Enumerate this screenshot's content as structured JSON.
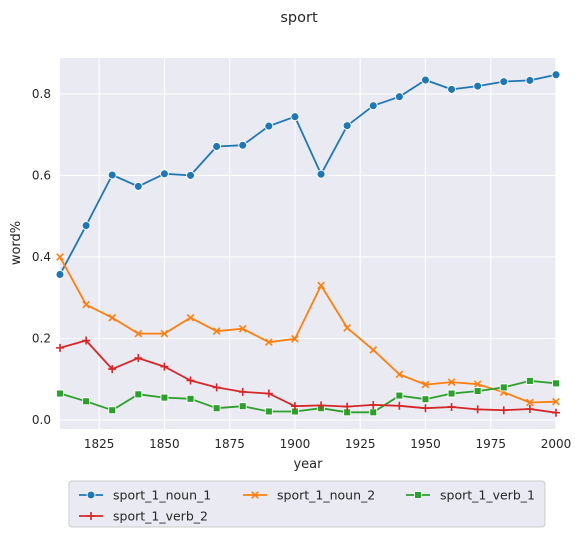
{
  "chart_data": {
    "type": "line",
    "title": "sport",
    "xlabel": "year",
    "ylabel": "word%",
    "xlim": [
      1810,
      2000
    ],
    "ylim": [
      -0.022,
      0.888
    ],
    "xticks": [
      1825,
      1850,
      1875,
      1900,
      1925,
      1950,
      1975,
      2000
    ],
    "yticks": [
      0.0,
      0.2,
      0.4,
      0.6,
      0.8
    ],
    "ytick_labels": [
      "0.0",
      "0.2",
      "0.4",
      "0.6",
      "0.8"
    ],
    "grid": true,
    "legend_placement": "below",
    "x": [
      1810,
      1820,
      1830,
      1840,
      1850,
      1860,
      1870,
      1880,
      1890,
      1900,
      1910,
      1920,
      1930,
      1940,
      1950,
      1960,
      1970,
      1980,
      1990,
      2000
    ],
    "series": [
      {
        "name": "sport_1_noun_1",
        "color": "#1f77b4",
        "marker": "circle",
        "values": [
          0.357,
          0.477,
          0.601,
          0.573,
          0.604,
          0.6,
          0.671,
          0.674,
          0.721,
          0.744,
          0.603,
          0.722,
          0.771,
          0.793,
          0.834,
          0.811,
          0.819,
          0.83,
          0.833,
          0.847
        ]
      },
      {
        "name": "sport_1_noun_2",
        "color": "#ff7f0e",
        "marker": "x",
        "values": [
          0.4,
          0.283,
          0.251,
          0.212,
          0.212,
          0.251,
          0.218,
          0.224,
          0.191,
          0.199,
          0.33,
          0.226,
          0.172,
          0.112,
          0.087,
          0.093,
          0.088,
          0.068,
          0.043,
          0.045
        ]
      },
      {
        "name": "sport_1_verb_1",
        "color": "#2ca02c",
        "marker": "square",
        "values": [
          0.065,
          0.046,
          0.024,
          0.063,
          0.055,
          0.052,
          0.029,
          0.034,
          0.021,
          0.021,
          0.029,
          0.019,
          0.019,
          0.06,
          0.051,
          0.065,
          0.071,
          0.08,
          0.096,
          0.09
        ]
      },
      {
        "name": "sport_1_verb_2",
        "color": "#d62728",
        "marker": "plus",
        "values": [
          0.177,
          0.195,
          0.125,
          0.152,
          0.131,
          0.097,
          0.08,
          0.069,
          0.065,
          0.034,
          0.036,
          0.033,
          0.037,
          0.035,
          0.029,
          0.032,
          0.026,
          0.024,
          0.027,
          0.018
        ]
      }
    ]
  }
}
